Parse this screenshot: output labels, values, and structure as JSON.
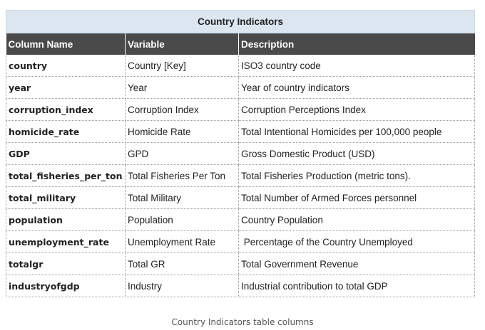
{
  "table": {
    "title": "Country Indicators",
    "headers": [
      "Column Name",
      "Variable",
      "Description"
    ],
    "rows": [
      [
        "country",
        "Country [Key]",
        "ISO3 country code"
      ],
      [
        "year",
        "Year",
        "Year of country indicators"
      ],
      [
        "corruption_index",
        "Corruption Index",
        "Corruption Perceptions Index"
      ],
      [
        "homicide_rate",
        "Homicide Rate",
        "Total Intentional Homicides per 100,000 people"
      ],
      [
        "GDP",
        "GPD",
        "Gross Domestic Product (USD)"
      ],
      [
        "total_fisheries_per_ton",
        "Total Fisheries Per Ton",
        "Total Fisheries Production (metric tons)."
      ],
      [
        "total_military",
        "Total Military",
        "Total Number of Armed Forces personnel"
      ],
      [
        "population",
        "Population",
        "Country Population"
      ],
      [
        "unemployment_rate",
        "Unemployment Rate",
        " Percentage of the Country Unemployed"
      ],
      [
        "totalgr",
        "Total GR",
        "Total Government Revenue"
      ],
      [
        "industryofgdp",
        "Industry",
        "Industrial contribution to total GDP"
      ]
    ]
  },
  "caption": "Country Indicators table columns",
  "colors": {
    "title_bg": "#dce6f1",
    "header_bg": "#4a4a4a",
    "header_text": "#ffffff"
  }
}
